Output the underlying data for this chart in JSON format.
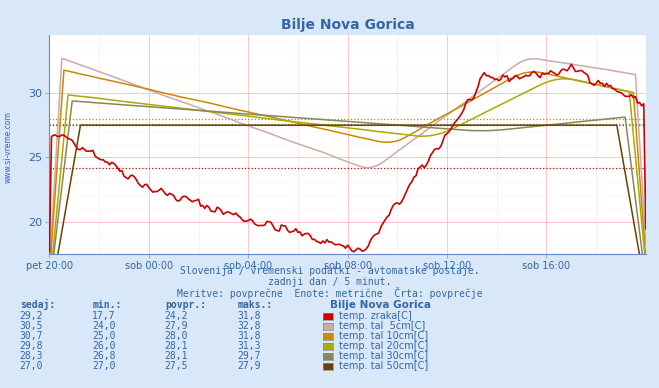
{
  "title": "Bilje Nova Gorica",
  "bg_color": "#d8e8f8",
  "plot_bg_color": "#ffffff",
  "text_color": "#3366aa",
  "xlabel_ticks": [
    "pet 20:00",
    "sob 00:00",
    "sob 04:00",
    "sob 08:00",
    "sob 12:00",
    "sob 16:00"
  ],
  "xlim": [
    0,
    288
  ],
  "ylim": [
    17.5,
    34.5
  ],
  "yticks": [
    20,
    25,
    30
  ],
  "footnote_line1": "Slovenija / vremenski podatki - avtomatske postaje.",
  "footnote_line2": "zadnji dan / 5 minut.",
  "footnote_line3": "Meritve: povprečne  Enote: metrične  Črta: povprečje",
  "table_headers": [
    "sedaj:",
    "min.:",
    "povpr.:",
    "maks.:"
  ],
  "table_data": [
    [
      "29,2",
      "17,7",
      "24,2",
      "31,8"
    ],
    [
      "30,5",
      "24,0",
      "27,9",
      "32,8"
    ],
    [
      "30,7",
      "25,0",
      "28,0",
      "31,8"
    ],
    [
      "29,8",
      "26,0",
      "28,1",
      "31,3"
    ],
    [
      "28,3",
      "26,8",
      "28,1",
      "29,7"
    ],
    [
      "27,0",
      "27,0",
      "27,5",
      "27,9"
    ]
  ],
  "legend_labels": [
    "temp. zraka[C]",
    "temp. tal  5cm[C]",
    "temp. tal 10cm[C]",
    "temp. tal 20cm[C]",
    "temp. tal 30cm[C]",
    "temp. tal 50cm[C]"
  ],
  "legend_colors": [
    "#cc0000",
    "#ccaaaa",
    "#cc8800",
    "#aaaa00",
    "#888855",
    "#664400"
  ],
  "legend_station": "Bilje Nova Gorica",
  "line_colors": {
    "zrak": "#cc0000",
    "tal5": "#ccaaaa",
    "tal10": "#cc8800",
    "tal20": "#aaaa00",
    "tal30": "#888855",
    "tal50": "#664400"
  },
  "avg_lines": [
    {
      "y": 24.2,
      "color": "#cc0000"
    },
    {
      "y": 27.5,
      "color": "#664400"
    },
    {
      "y": 27.6,
      "color": "#888866"
    },
    {
      "y": 28.0,
      "color": "#999933"
    }
  ]
}
